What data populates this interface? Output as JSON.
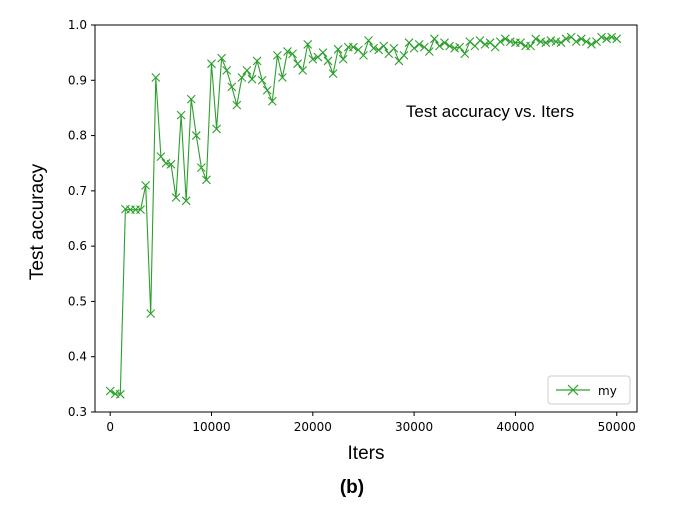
{
  "caption": "(b)",
  "chart_data": {
    "type": "line",
    "annotation": "Test accuracy vs. Iters",
    "xlabel": "Iters",
    "ylabel": "Test accuracy",
    "xlim": [
      -1500,
      52000
    ],
    "ylim": [
      0.3,
      1.0
    ],
    "xticks": [
      0,
      10000,
      20000,
      30000,
      40000,
      50000
    ],
    "xtick_labels": [
      "0",
      "10000",
      "20000",
      "30000",
      "40000",
      "50000"
    ],
    "yticks": [
      0.3,
      0.4,
      0.5,
      0.6,
      0.7,
      0.8,
      0.9,
      1.0
    ],
    "ytick_labels": [
      "0.3",
      "0.4",
      "0.5",
      "0.6",
      "0.7",
      "0.8",
      "0.9",
      "1.0"
    ],
    "grid": false,
    "legend_position": "bottom-right",
    "series": [
      {
        "name": "my",
        "color": "#2ca02c",
        "marker": "x",
        "x": [
          0,
          500,
          1000,
          1500,
          2000,
          2500,
          3000,
          3500,
          4000,
          4500,
          5000,
          5500,
          6000,
          6500,
          7000,
          7500,
          8000,
          8500,
          9000,
          9500,
          10000,
          10500,
          11000,
          11500,
          12000,
          12500,
          13000,
          13500,
          14000,
          14500,
          15000,
          15500,
          16000,
          16500,
          17000,
          17500,
          18000,
          18500,
          19000,
          19500,
          20000,
          20500,
          21000,
          21500,
          22000,
          22500,
          23000,
          23500,
          24000,
          24500,
          25000,
          25500,
          26000,
          26500,
          27000,
          27500,
          28000,
          28500,
          29000,
          29500,
          30000,
          30500,
          31000,
          31500,
          32000,
          32500,
          33000,
          33500,
          34000,
          34500,
          35000,
          35500,
          36000,
          36500,
          37000,
          37500,
          38000,
          38500,
          39000,
          39500,
          40000,
          40500,
          41000,
          41500,
          42000,
          42500,
          43000,
          43500,
          44000,
          44500,
          45000,
          45500,
          46000,
          46500,
          47000,
          47500,
          48000,
          48500,
          49000,
          49500,
          50000
        ],
        "values": [
          0.338,
          0.333,
          0.332,
          0.667,
          0.666,
          0.666,
          0.666,
          0.71,
          0.478,
          0.905,
          0.762,
          0.75,
          0.748,
          0.688,
          0.837,
          0.682,
          0.866,
          0.8,
          0.742,
          0.72,
          0.93,
          0.812,
          0.94,
          0.918,
          0.888,
          0.855,
          0.905,
          0.918,
          0.902,
          0.935,
          0.9,
          0.882,
          0.862,
          0.945,
          0.905,
          0.952,
          0.948,
          0.93,
          0.918,
          0.965,
          0.938,
          0.942,
          0.95,
          0.935,
          0.912,
          0.956,
          0.938,
          0.96,
          0.96,
          0.955,
          0.945,
          0.972,
          0.958,
          0.955,
          0.962,
          0.948,
          0.958,
          0.935,
          0.945,
          0.968,
          0.958,
          0.965,
          0.96,
          0.952,
          0.975,
          0.962,
          0.968,
          0.962,
          0.958,
          0.96,
          0.948,
          0.97,
          0.962,
          0.972,
          0.965,
          0.968,
          0.96,
          0.97,
          0.975,
          0.97,
          0.968,
          0.968,
          0.962,
          0.962,
          0.975,
          0.97,
          0.968,
          0.972,
          0.97,
          0.968,
          0.975,
          0.978,
          0.97,
          0.975,
          0.97,
          0.965,
          0.97,
          0.978,
          0.975,
          0.978,
          0.975
        ]
      }
    ]
  }
}
